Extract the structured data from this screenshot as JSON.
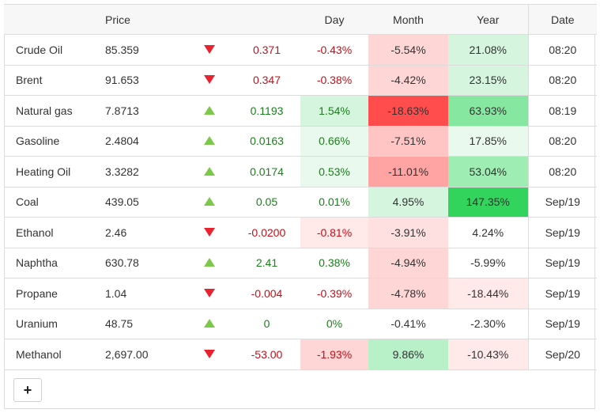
{
  "headers": {
    "price": "Price",
    "day": "Day",
    "month": "Month",
    "year": "Year",
    "date": "Date"
  },
  "rows": [
    {
      "name": "Crude Oil",
      "price": "85.359",
      "dir": "down",
      "change": "0.371",
      "day": "-0.43%",
      "month": "-5.54%",
      "year": "21.08%",
      "date": "08:20",
      "day_bg": "",
      "month_bg": "#ffd6d6",
      "year_bg": "#d6f5de"
    },
    {
      "name": "Brent",
      "price": "91.653",
      "dir": "down",
      "change": "0.347",
      "day": "-0.38%",
      "month": "-4.42%",
      "year": "23.15%",
      "date": "08:20",
      "day_bg": "",
      "month_bg": "#ffd6d6",
      "year_bg": "#d6f5de"
    },
    {
      "name": "Natural gas",
      "price": "7.8713",
      "dir": "up",
      "change": "0.1193",
      "day": "1.54%",
      "month": "-18.63%",
      "year": "63.93%",
      "date": "08:19",
      "day_bg": "#d6f5de",
      "month_bg": "#ff4d4d",
      "year_bg": "#86e8a0"
    },
    {
      "name": "Gasoline",
      "price": "2.4804",
      "dir": "up",
      "change": "0.0163",
      "day": "0.66%",
      "month": "-7.51%",
      "year": "17.85%",
      "date": "08:20",
      "day_bg": "#e9f9ed",
      "month_bg": "#ffc4c4",
      "year_bg": "#e9f9ed"
    },
    {
      "name": "Heating Oil",
      "price": "3.3282",
      "dir": "up",
      "change": "0.0174",
      "day": "0.53%",
      "month": "-11.01%",
      "year": "53.04%",
      "date": "08:20",
      "day_bg": "#e9f9ed",
      "month_bg": "#ffa3a3",
      "year_bg": "#9eedb3"
    },
    {
      "name": "Coal",
      "price": "439.05",
      "dir": "up",
      "change": "0.05",
      "day": "0.01%",
      "month": "4.95%",
      "year": "147.35%",
      "date": "Sep/19",
      "day_bg": "",
      "month_bg": "#d6f5de",
      "year_bg": "#33d45c"
    },
    {
      "name": "Ethanol",
      "price": "2.46",
      "dir": "down",
      "change": "-0.0200",
      "day": "-0.81%",
      "month": "-3.91%",
      "year": "4.24%",
      "date": "Sep/19",
      "day_bg": "#ffe9e9",
      "month_bg": "#ffe0e0",
      "year_bg": ""
    },
    {
      "name": "Naphtha",
      "price": "630.78",
      "dir": "up",
      "change": "2.41",
      "day": "0.38%",
      "month": "-4.94%",
      "year": "-5.99%",
      "date": "Sep/19",
      "day_bg": "",
      "month_bg": "#ffd6d6",
      "year_bg": ""
    },
    {
      "name": "Propane",
      "price": "1.04",
      "dir": "down",
      "change": "-0.004",
      "day": "-0.39%",
      "month": "-4.78%",
      "year": "-18.44%",
      "date": "Sep/19",
      "day_bg": "",
      "month_bg": "#ffd6d6",
      "year_bg": "#ffe9e9"
    },
    {
      "name": "Uranium",
      "price": "48.75",
      "dir": "up",
      "change": "0",
      "day": "0%",
      "month": "-0.41%",
      "year": "-2.30%",
      "date": "Sep/19",
      "day_bg": "",
      "month_bg": "",
      "year_bg": ""
    },
    {
      "name": "Methanol",
      "price": "2,697.00",
      "dir": "down",
      "change": "-53.00",
      "day": "-1.93%",
      "month": "9.86%",
      "year": "-10.43%",
      "date": "Sep/20",
      "day_bg": "#ffd6d6",
      "month_bg": "#b8f0c8",
      "year_bg": "#ffe9e9"
    }
  ],
  "add_button": {
    "label": "+"
  }
}
